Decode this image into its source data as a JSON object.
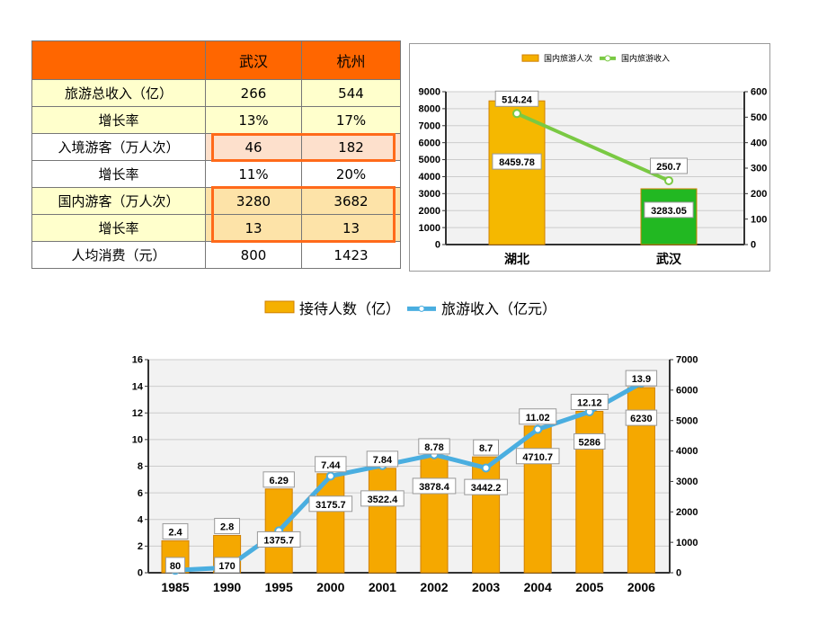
{
  "table": {
    "headers": [
      "",
      "武汉",
      "杭州"
    ],
    "rows": [
      {
        "label": "旅游总收入（亿）",
        "values": [
          "266",
          "544"
        ],
        "bg": "#ffffcc"
      },
      {
        "label": "增长率",
        "values": [
          "13%",
          "17%"
        ],
        "bg": "#ffffcc"
      },
      {
        "label": "入境游客（万人次）",
        "values": [
          "46",
          "182"
        ],
        "bg": "#ffffff",
        "cell_bg": "#fde0cc"
      },
      {
        "label": "增长率",
        "values": [
          "11%",
          "20%"
        ],
        "bg": "#ffffff"
      },
      {
        "label": "国内游客（万人次）",
        "values": [
          "3280",
          "3682"
        ],
        "bg": "#ffffcc",
        "cell_bg": "#fde3a8"
      },
      {
        "label": "增长率",
        "values": [
          "13",
          "13"
        ],
        "bg": "#ffffcc",
        "cell_bg": "#fde3a8"
      },
      {
        "label": "人均消费（元）",
        "values": [
          "800",
          "1423"
        ],
        "bg": "#ffffff"
      }
    ],
    "header_color": "#ff6600",
    "highlight_color": "#ff6a1a"
  },
  "chart_data": [
    {
      "type": "bar+line",
      "categories": [
        "湖北",
        "武汉"
      ],
      "series": [
        {
          "name": "国内旅游人次",
          "type": "bar",
          "axis": "left",
          "values": [
            8459.78,
            3283.05
          ],
          "colors": [
            "#f5b800",
            "#22b822"
          ]
        },
        {
          "name": "国内旅游收入",
          "type": "line",
          "axis": "right",
          "values": [
            514.24,
            250.7
          ],
          "color": "#7ac943"
        }
      ],
      "y_left": {
        "range": [
          0,
          9000
        ],
        "ticks": [
          0,
          1000,
          2000,
          3000,
          4000,
          5000,
          6000,
          7000,
          8000,
          9000
        ]
      },
      "y_right": {
        "range": [
          0,
          600
        ],
        "ticks": [
          0,
          100,
          200,
          300,
          400,
          500,
          600
        ]
      },
      "legend": "top",
      "grid": true
    },
    {
      "type": "bar+line",
      "categories": [
        "1985",
        "1990",
        "1995",
        "2000",
        "2001",
        "2002",
        "2003",
        "2004",
        "2005",
        "2006"
      ],
      "series": [
        {
          "name": "接待人数（亿）",
          "type": "bar",
          "axis": "left",
          "values": [
            2.4,
            2.8,
            6.29,
            7.44,
            7.84,
            8.78,
            8.7,
            11.02,
            12.12,
            13.9
          ],
          "color": "#f5a800"
        },
        {
          "name": "旅游收入（亿元）",
          "type": "line",
          "axis": "right",
          "values": [
            80,
            170,
            1375.7,
            3175.7,
            3522.4,
            3878.4,
            3442.2,
            4710.7,
            5286,
            6230
          ],
          "color": "#4aaee0"
        }
      ],
      "y_left": {
        "range": [
          0,
          16
        ],
        "ticks": [
          0,
          2,
          4,
          6,
          8,
          10,
          12,
          14,
          16
        ]
      },
      "y_right": {
        "range": [
          0,
          7000
        ],
        "ticks": [
          0,
          1000,
          2000,
          3000,
          4000,
          5000,
          6000,
          7000
        ]
      },
      "legend": "top",
      "grid": true
    }
  ]
}
